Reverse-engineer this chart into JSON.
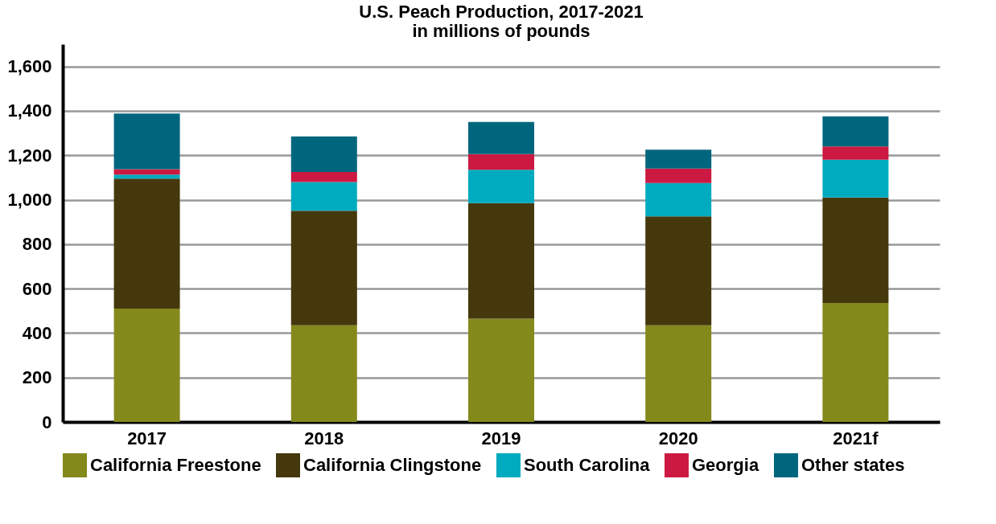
{
  "chart_data": {
    "type": "bar",
    "title": "U.S. Peach Production, 2017-2021",
    "subtitle": "in millions of pounds",
    "categories": [
      "2017",
      "2018",
      "2019",
      "2020",
      "2021f"
    ],
    "stacked": true,
    "series": [
      {
        "name": "California Freestone",
        "color": "#84891c",
        "values": [
          510,
          435,
          465,
          435,
          535
        ]
      },
      {
        "name": "California Clingstone",
        "color": "#45380d",
        "values": [
          585,
          515,
          520,
          490,
          475
        ]
      },
      {
        "name": "South Carolina",
        "color": "#00abbf",
        "values": [
          18,
          130,
          150,
          150,
          170
        ]
      },
      {
        "name": "Georgia",
        "color": "#cc1941",
        "values": [
          25,
          45,
          70,
          65,
          60
        ]
      },
      {
        "name": "Other states",
        "color": "#00667d",
        "values": [
          250,
          160,
          145,
          85,
          135
        ]
      }
    ],
    "ylim": [
      0,
      1700
    ],
    "yticks": [
      0,
      200,
      400,
      600,
      800,
      {
        "value": 1000,
        "label": "1,000"
      },
      {
        "value": 1200,
        "label": "1,200"
      },
      {
        "value": 1400,
        "label": "1,400"
      },
      {
        "value": 1600,
        "label": "1,600"
      }
    ],
    "grid": "y",
    "legend": "bottom"
  }
}
